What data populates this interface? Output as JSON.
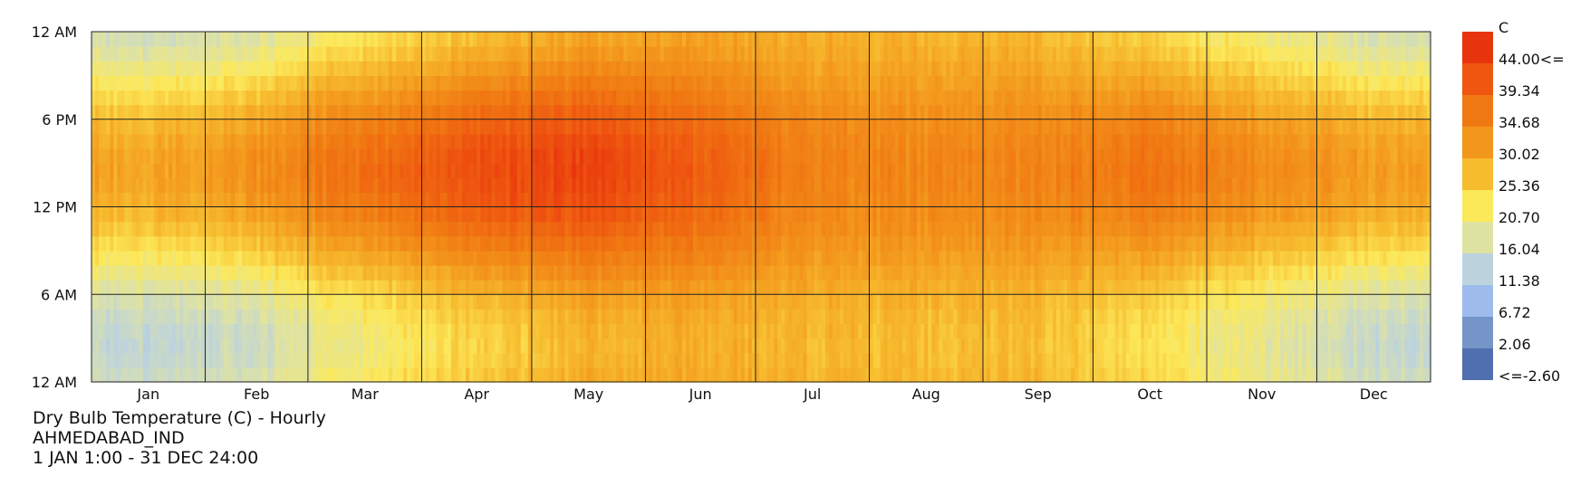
{
  "chart_data": {
    "type": "heatmap",
    "title": "Dry Bulb Temperature (C) - Hourly",
    "location": "AHMEDABAD_IND",
    "period": "1 JAN 1:00 - 31 DEC 24:00",
    "x_tick_labels": [
      "Jan",
      "Feb",
      "Mar",
      "Apr",
      "May",
      "Jun",
      "Jul",
      "Aug",
      "Sep",
      "Oct",
      "Nov",
      "Dec"
    ],
    "y_tick_labels": [
      "12 AM",
      "6 PM",
      "12 PM",
      "6 AM",
      "12 AM"
    ],
    "month_days": [
      31,
      28,
      31,
      30,
      31,
      30,
      31,
      31,
      30,
      31,
      30,
      31
    ],
    "legend": {
      "unit": "C",
      "labels": [
        "44.00<=",
        "39.34",
        "34.68",
        "30.02",
        "25.36",
        "20.70",
        "16.04",
        "11.38",
        "6.72",
        "2.06",
        "<=-2.60"
      ],
      "colors": [
        "#e8340c",
        "#ef5710",
        "#f07812",
        "#f3961c",
        "#f7bb2e",
        "#fce95a",
        "#dfe3a2",
        "#bcd3de",
        "#9ebbec",
        "#7594c8",
        "#4f6fae"
      ]
    },
    "monthly_daily_temperature": {
      "months": [
        "Jan",
        "Feb",
        "Mar",
        "Apr",
        "May",
        "Jun",
        "Jul",
        "Aug",
        "Sep",
        "Oct",
        "Nov",
        "Dec"
      ],
      "min": [
        12,
        14,
        19,
        23,
        26,
        27,
        26,
        25,
        25,
        21,
        17,
        13
      ],
      "max": [
        28,
        31,
        36,
        40,
        42,
        38,
        33,
        32,
        33,
        35,
        32,
        29
      ]
    }
  }
}
